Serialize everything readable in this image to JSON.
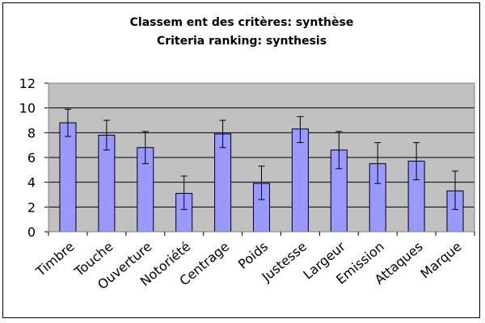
{
  "chart_data": {
    "type": "bar",
    "title": "Classem ent des critères: synthèse",
    "subtitle": "Criteria ranking: synthesis",
    "categories": [
      "Timbre",
      "Touche",
      "Ouverture",
      "Notoriété",
      "Centrage",
      "Poids",
      "Justesse",
      "Largeur",
      "Emission",
      "Attaques",
      "Marque"
    ],
    "values": [
      8.8,
      7.8,
      6.8,
      3.1,
      7.9,
      3.9,
      8.3,
      6.6,
      5.5,
      5.7,
      3.3
    ],
    "error_low": [
      7.7,
      6.6,
      5.5,
      1.8,
      6.8,
      2.6,
      7.2,
      5.1,
      3.9,
      4.2,
      1.8
    ],
    "error_high": [
      9.9,
      9.0,
      8.1,
      4.5,
      9.0,
      5.3,
      9.3,
      8.1,
      7.2,
      7.2,
      4.9
    ],
    "ylim": [
      0,
      12
    ],
    "yticks": [
      0,
      2,
      4,
      6,
      8,
      10,
      12
    ],
    "grid": true,
    "legend": "none",
    "colors": {
      "bar": "#9999ff",
      "bar_stroke": "#000000",
      "plot_bg": "#c0c0c0",
      "grid": "#000000"
    }
  }
}
